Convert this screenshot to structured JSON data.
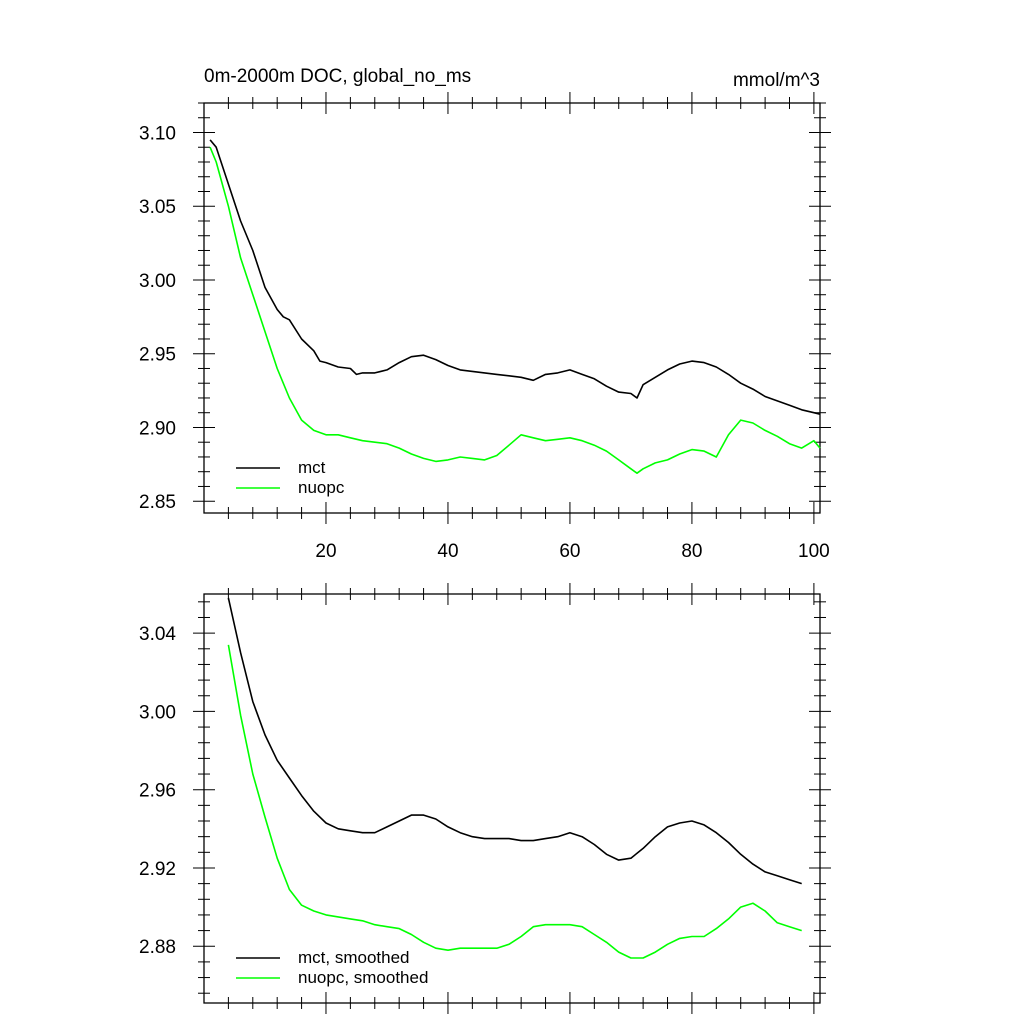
{
  "chart_data": [
    {
      "type": "line",
      "title_left": "0m-2000m DOC, global_no_ms",
      "title_right": "mmol/m^3",
      "xlabel": "",
      "ylabel": "",
      "xlim": [
        0,
        101
      ],
      "ylim": [
        2.842,
        3.12
      ],
      "x_ticks": [
        20,
        40,
        60,
        80,
        100
      ],
      "x_tick_labels": [
        "20",
        "40",
        "60",
        "80",
        "100"
      ],
      "y_ticks": [
        2.85,
        2.9,
        2.95,
        3.0,
        3.05,
        3.1
      ],
      "y_tick_labels": [
        "2.85",
        "2.90",
        "2.95",
        "3.00",
        "3.05",
        "3.10"
      ],
      "legend_position": "bottom-left",
      "series": [
        {
          "name": "mct",
          "color": "#000000",
          "x": [
            1,
            2,
            4,
            6,
            8,
            10,
            12,
            13,
            14,
            16,
            18,
            19,
            20,
            22,
            24,
            25,
            26,
            28,
            30,
            32,
            34,
            36,
            38,
            40,
            42,
            44,
            46,
            48,
            50,
            52,
            54,
            56,
            58,
            60,
            62,
            64,
            66,
            68,
            70,
            71,
            72,
            74,
            76,
            78,
            80,
            82,
            84,
            86,
            88,
            90,
            92,
            94,
            96,
            98,
            100,
            101
          ],
          "values": [
            3.095,
            3.09,
            3.065,
            3.04,
            3.02,
            2.995,
            2.98,
            2.975,
            2.973,
            2.96,
            2.952,
            2.945,
            2.944,
            2.941,
            2.94,
            2.936,
            2.937,
            2.937,
            2.939,
            2.944,
            2.948,
            2.949,
            2.946,
            2.942,
            2.939,
            2.938,
            2.937,
            2.936,
            2.935,
            2.934,
            2.932,
            2.936,
            2.937,
            2.939,
            2.936,
            2.933,
            2.928,
            2.924,
            2.923,
            2.92,
            2.929,
            2.934,
            2.939,
            2.943,
            2.945,
            2.944,
            2.941,
            2.936,
            2.93,
            2.926,
            2.921,
            2.918,
            2.915,
            2.912,
            2.91,
            2.909
          ]
        },
        {
          "name": "nuopc",
          "color": "#00ff00",
          "x": [
            1,
            2,
            4,
            6,
            8,
            10,
            12,
            14,
            16,
            18,
            20,
            22,
            24,
            26,
            28,
            30,
            32,
            34,
            36,
            38,
            40,
            42,
            44,
            46,
            48,
            50,
            52,
            54,
            56,
            58,
            60,
            62,
            64,
            66,
            68,
            70,
            71,
            72,
            74,
            76,
            78,
            80,
            82,
            84,
            86,
            88,
            90,
            92,
            94,
            96,
            98,
            100,
            101
          ],
          "values": [
            3.09,
            3.08,
            3.05,
            3.015,
            2.99,
            2.965,
            2.94,
            2.92,
            2.905,
            2.898,
            2.895,
            2.895,
            2.893,
            2.891,
            2.89,
            2.889,
            2.886,
            2.882,
            2.879,
            2.877,
            2.878,
            2.88,
            2.879,
            2.878,
            2.881,
            2.888,
            2.895,
            2.893,
            2.891,
            2.892,
            2.893,
            2.891,
            2.888,
            2.884,
            2.878,
            2.872,
            2.869,
            2.872,
            2.876,
            2.878,
            2.882,
            2.885,
            2.884,
            2.88,
            2.895,
            2.905,
            2.903,
            2.898,
            2.894,
            2.889,
            2.886,
            2.891,
            2.886
          ]
        }
      ]
    },
    {
      "type": "line",
      "title_left": "",
      "title_right": "",
      "xlabel": "",
      "ylabel": "",
      "xlim": [
        0,
        101
      ],
      "ylim": [
        2.851,
        3.06
      ],
      "x_ticks": [
        20,
        40,
        60,
        80,
        100
      ],
      "x_tick_labels": [],
      "y_ticks": [
        2.88,
        2.92,
        2.96,
        3.0,
        3.04
      ],
      "y_tick_labels": [
        "2.88",
        "2.92",
        "2.96",
        "3.00",
        "3.04"
      ],
      "legend_position": "bottom-left",
      "series": [
        {
          "name": "mct, smoothed",
          "color": "#000000",
          "x": [
            4,
            6,
            8,
            10,
            12,
            14,
            16,
            18,
            20,
            22,
            24,
            26,
            28,
            30,
            32,
            34,
            36,
            38,
            40,
            42,
            44,
            46,
            48,
            50,
            52,
            54,
            56,
            58,
            60,
            62,
            64,
            66,
            68,
            70,
            72,
            74,
            76,
            78,
            80,
            82,
            84,
            86,
            88,
            90,
            92,
            94,
            96,
            98
          ],
          "values": [
            3.058,
            3.03,
            3.005,
            2.988,
            2.975,
            2.966,
            2.957,
            2.949,
            2.943,
            2.94,
            2.939,
            2.938,
            2.938,
            2.941,
            2.944,
            2.947,
            2.947,
            2.945,
            2.941,
            2.938,
            2.936,
            2.935,
            2.935,
            2.935,
            2.934,
            2.934,
            2.935,
            2.936,
            2.938,
            2.936,
            2.932,
            2.927,
            2.924,
            2.925,
            2.93,
            2.936,
            2.941,
            2.943,
            2.944,
            2.942,
            2.938,
            2.933,
            2.927,
            2.922,
            2.918,
            2.916,
            2.914,
            2.912
          ]
        },
        {
          "name": "nuopc, smoothed",
          "color": "#00ff00",
          "x": [
            4,
            6,
            8,
            10,
            12,
            14,
            16,
            18,
            20,
            22,
            24,
            26,
            28,
            30,
            32,
            34,
            36,
            38,
            40,
            42,
            44,
            46,
            48,
            50,
            52,
            54,
            56,
            58,
            60,
            62,
            64,
            66,
            68,
            70,
            72,
            74,
            76,
            78,
            80,
            82,
            84,
            86,
            88,
            90,
            92,
            94,
            96,
            98
          ],
          "values": [
            3.034,
            2.998,
            2.968,
            2.946,
            2.925,
            2.909,
            2.901,
            2.898,
            2.896,
            2.895,
            2.894,
            2.893,
            2.891,
            2.89,
            2.889,
            2.886,
            2.882,
            2.879,
            2.878,
            2.879,
            2.879,
            2.879,
            2.879,
            2.881,
            2.885,
            2.89,
            2.891,
            2.891,
            2.891,
            2.89,
            2.886,
            2.882,
            2.877,
            2.874,
            2.874,
            2.877,
            2.881,
            2.884,
            2.885,
            2.885,
            2.889,
            2.894,
            2.9,
            2.902,
            2.898,
            2.892,
            2.89,
            2.888
          ]
        }
      ]
    }
  ]
}
